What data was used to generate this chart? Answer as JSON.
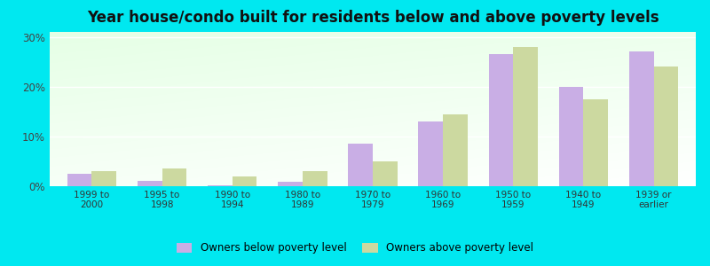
{
  "categories": [
    "1999 to\n2000",
    "1995 to\n1998",
    "1990 to\n1994",
    "1980 to\n1989",
    "1970 to\n1979",
    "1960 to\n1969",
    "1950 to\n1959",
    "1940 to\n1949",
    "1939 or\nearlier"
  ],
  "below_poverty": [
    2.5,
    1.0,
    0.2,
    0.9,
    8.5,
    13.0,
    26.5,
    20.0,
    27.0
  ],
  "above_poverty": [
    3.0,
    3.5,
    2.0,
    3.0,
    5.0,
    14.5,
    28.0,
    17.5,
    24.0
  ],
  "below_color": "#c9aee5",
  "above_color": "#ccd9a0",
  "title": "Year house/condo built for residents below and above poverty levels",
  "ylim": [
    0,
    31
  ],
  "yticks": [
    0,
    10,
    20,
    30
  ],
  "ytick_labels": [
    "0%",
    "10%",
    "20%",
    "30%"
  ],
  "bar_width": 0.35,
  "outer_background": "#00e8f0",
  "title_fontsize": 12,
  "legend_below_label": "Owners below poverty level",
  "legend_above_label": "Owners above poverty level"
}
